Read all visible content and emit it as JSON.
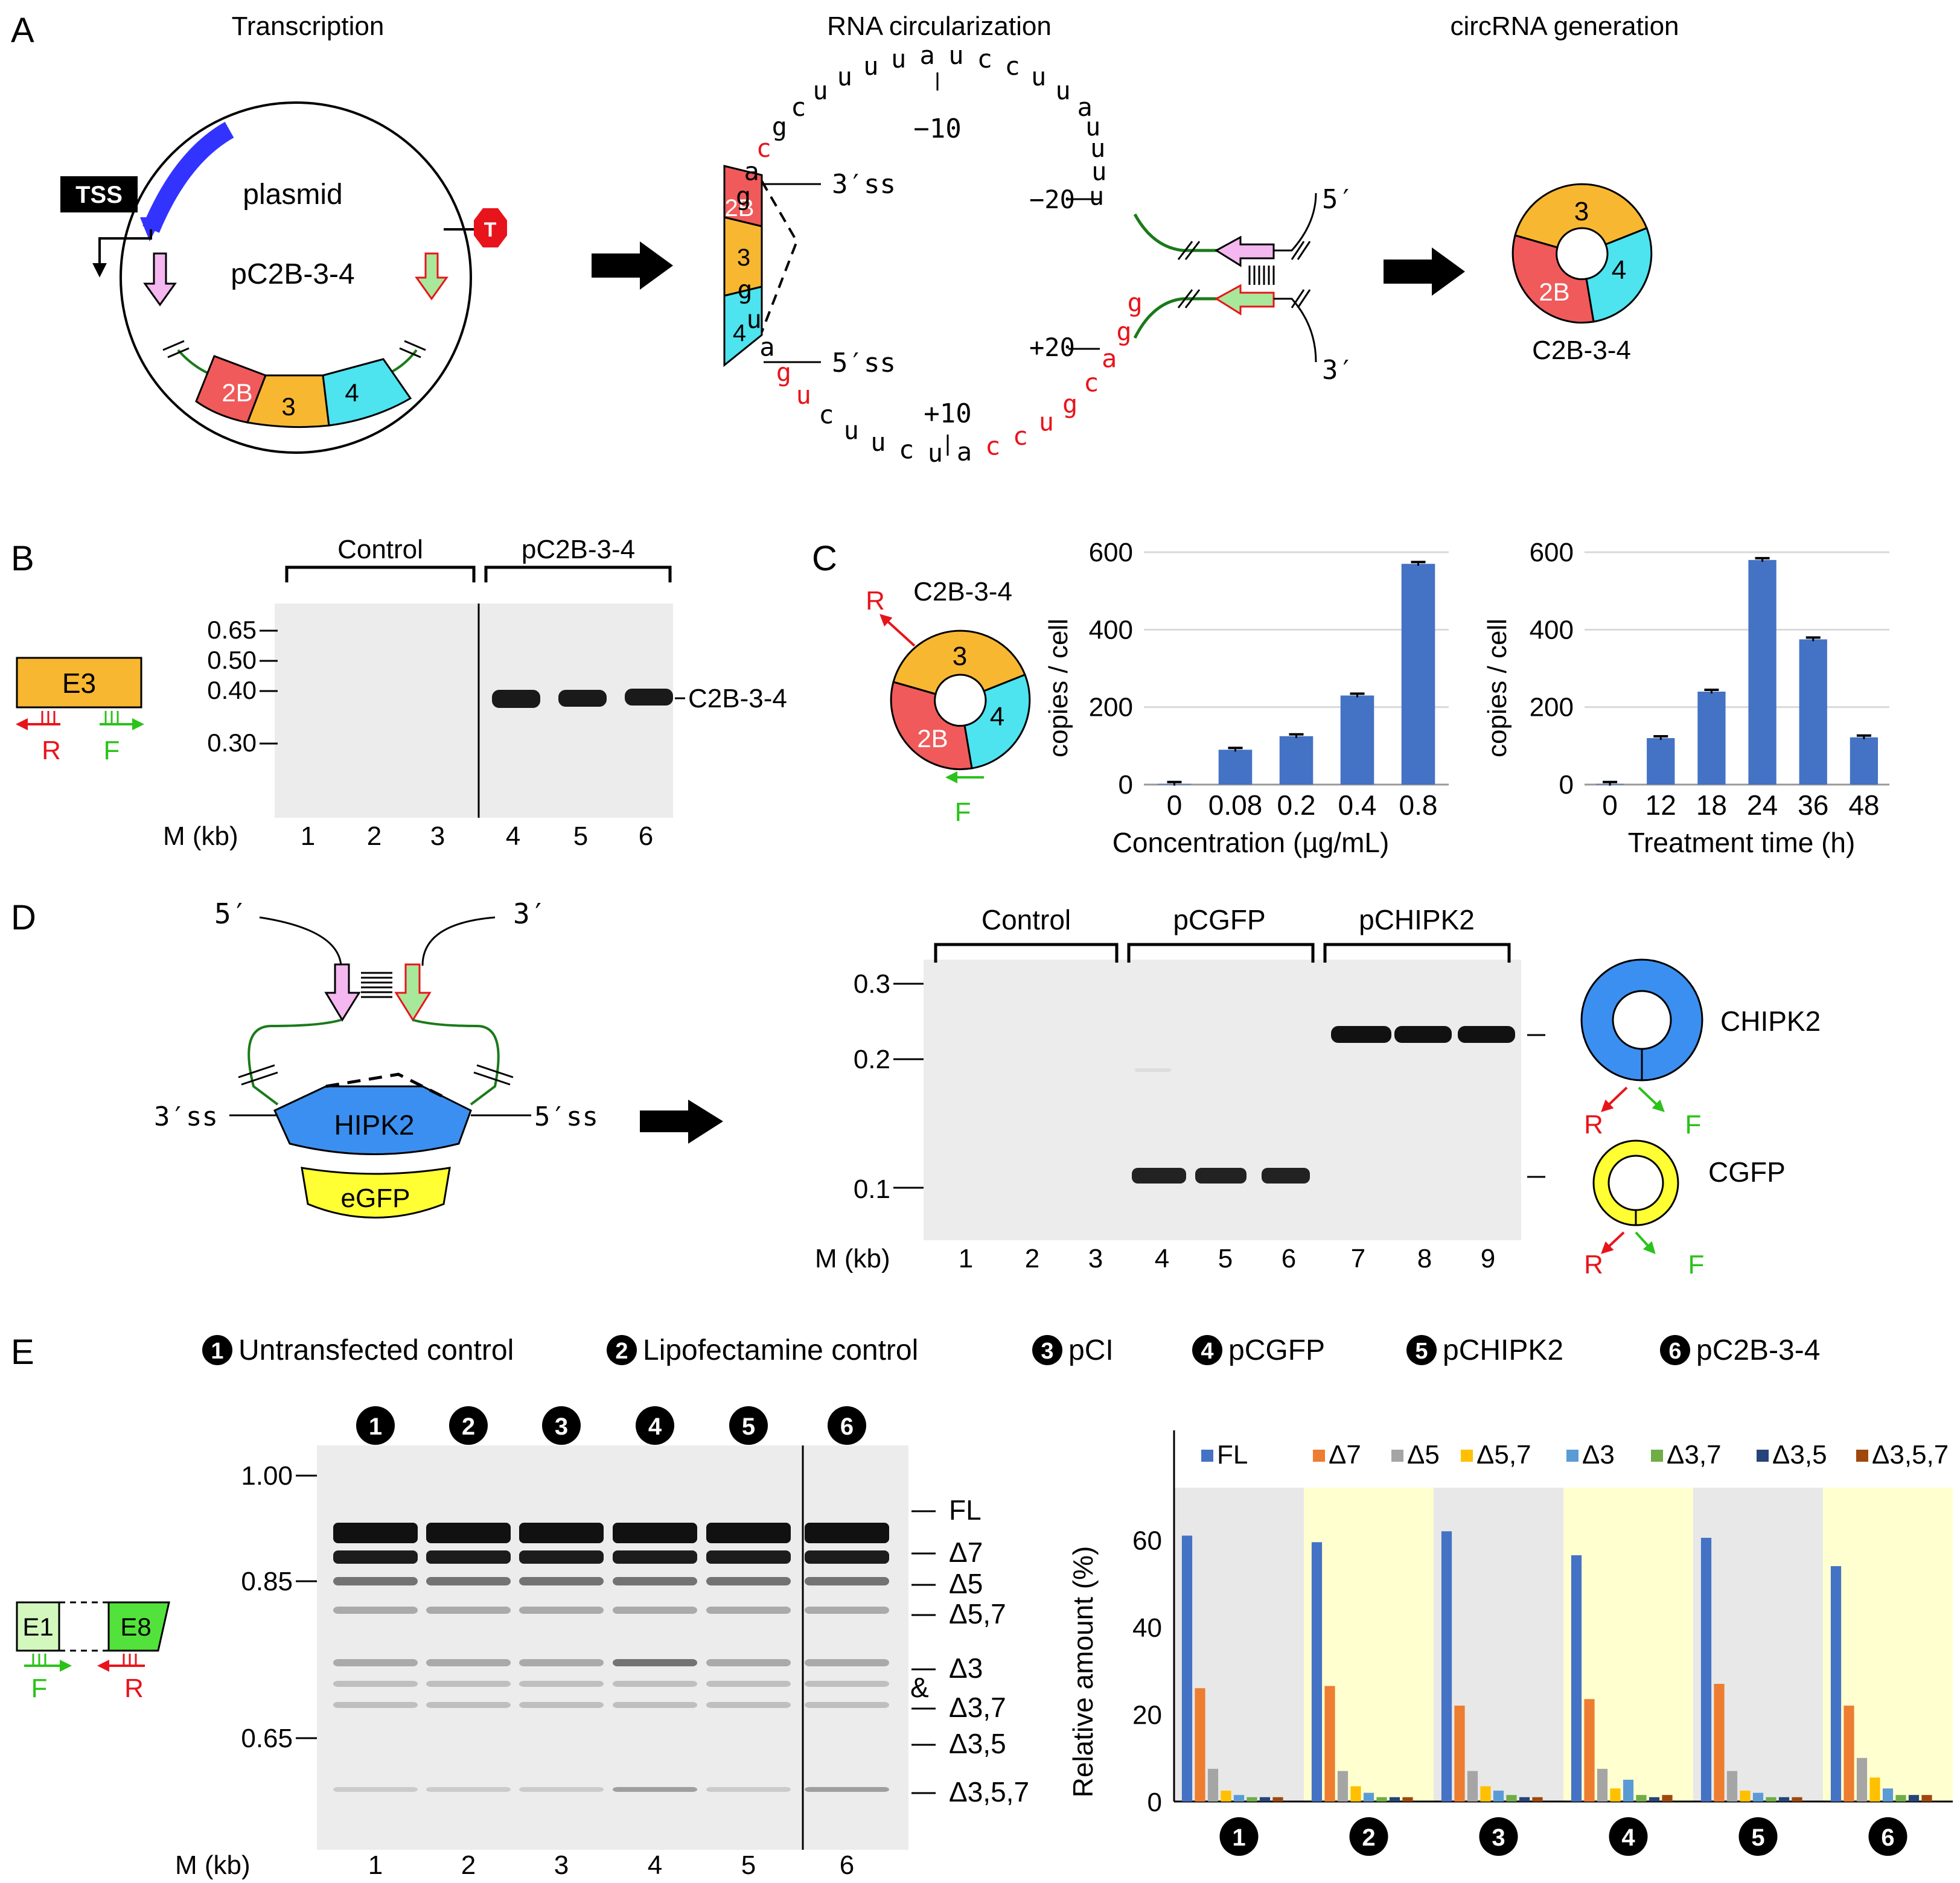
{
  "panel_letters": {
    "a": "A",
    "b": "B",
    "c": "C",
    "d": "D",
    "e": "E"
  },
  "panelA": {
    "title_left": "Transcription",
    "title_mid": "RNA circularization",
    "title_right": "circRNA generation",
    "tss": "TSS",
    "terminator": "T",
    "plasmid": "plasmid",
    "plasmid_name": "pC2B-3-4",
    "exons": [
      "2B",
      "3",
      "4"
    ],
    "ss3": "3′ss",
    "ss5": "5′ss",
    "tick_m10": "−10",
    "tick_m20": "−20",
    "tick_p10": "+10",
    "tick_p20": "+20",
    "end5": "5′",
    "end3": "3′",
    "circ_label": "C2B-3-4",
    "top_seq": [
      "g",
      "a",
      "c",
      "g",
      "c",
      "u",
      "u",
      "u",
      "u",
      "a",
      "u",
      "c",
      "c",
      "u",
      "u",
      "a",
      "u",
      "u",
      "u",
      "u"
    ],
    "bottom_seq": [
      "g",
      "u",
      "a",
      "g",
      "u",
      "c",
      "u",
      "u",
      "c",
      "u",
      "a",
      "c",
      "c",
      "u",
      "g",
      "c",
      "a",
      "g",
      "g"
    ]
  },
  "panelB": {
    "exon": "E3",
    "primer_r": "R",
    "primer_f": "F",
    "group_control": "Control",
    "group_treat": "pC2B-3-4",
    "markers": [
      "0.65",
      "0.50",
      "0.40",
      "0.30"
    ],
    "band_label": "C2B-3-4",
    "m_label": "M (kb)",
    "lanes": [
      "1",
      "2",
      "3",
      "4",
      "5",
      "6"
    ]
  },
  "panelC": {
    "circ_label": "C2B-3-4",
    "exons": [
      "3",
      "2B",
      "4"
    ],
    "primer_r": "R",
    "primer_f": "F",
    "chart_data": [
      {
        "type": "bar",
        "title": "",
        "xlabel": "Concentration (µg/mL)",
        "ylabel": "copies / cell",
        "categories": [
          "0",
          "0.08",
          "0.2",
          "0.4",
          "0.8"
        ],
        "values": [
          2,
          90,
          125,
          230,
          570
        ],
        "ylim": [
          0,
          600
        ],
        "yticks": [
          "0",
          "200",
          "400",
          "600"
        ]
      },
      {
        "type": "bar",
        "title": "",
        "xlabel": "Treatment time (h)",
        "ylabel": "copies / cell",
        "categories": [
          "0",
          "12",
          "18",
          "24",
          "36",
          "48"
        ],
        "values": [
          2,
          120,
          240,
          580,
          375,
          122
        ],
        "ylim": [
          0,
          600
        ],
        "yticks": [
          "0",
          "200",
          "400",
          "600"
        ]
      }
    ]
  },
  "panelD": {
    "end5": "5′",
    "end3": "3′",
    "ss3": "3′ss",
    "ss5": "5′ss",
    "gene1": "HIPK2",
    "gene2": "eGFP",
    "group_control": "Control",
    "group_gfp": "pCGFP",
    "group_hipk": "pCHIPK2",
    "markers": [
      "0.3",
      "0.2",
      "0.1"
    ],
    "m_label": "M (kb)",
    "lanes": [
      "1",
      "2",
      "3",
      "4",
      "5",
      "6",
      "7",
      "8",
      "9"
    ],
    "circ1": "CHIPK2",
    "circ2": "CGFP",
    "primer_r": "R",
    "primer_f": "F"
  },
  "panelE": {
    "legend_items": [
      {
        "num": "1",
        "label": "Untransfected control"
      },
      {
        "num": "2",
        "label": "Lipofectamine control"
      },
      {
        "num": "3",
        "label": "pCI"
      },
      {
        "num": "4",
        "label": "pCGFP"
      },
      {
        "num": "5",
        "label": "pCHIPK2"
      },
      {
        "num": "6",
        "label": "pC2B-3-4"
      }
    ],
    "exon1": "E1",
    "exon8": "E8",
    "primer_f": "F",
    "primer_r": "R",
    "lane_badges": [
      "1",
      "2",
      "3",
      "4",
      "5",
      "6"
    ],
    "markers": [
      "1.00",
      "0.85",
      "0.65"
    ],
    "m_label": "M (kb)",
    "lanes": [
      "1",
      "2",
      "3",
      "4",
      "5",
      "6"
    ],
    "isoforms": [
      "FL",
      "Δ7",
      "Δ5",
      "Δ5,7",
      "Δ3",
      "&",
      "Δ3,7",
      "Δ3,5",
      "Δ3,5,7"
    ],
    "chart_data": {
      "type": "bar",
      "ylabel": "Relative amount (%)",
      "ylim": [
        0,
        72
      ],
      "yticks": [
        "0",
        "20",
        "40",
        "60"
      ],
      "categories": [
        "1",
        "2",
        "3",
        "4",
        "5",
        "6"
      ],
      "series": [
        {
          "name": "FL",
          "color": "#4472c4",
          "values": [
            61,
            59.5,
            62,
            56.5,
            60.5,
            54
          ]
        },
        {
          "name": "Δ7",
          "color": "#ed7d31",
          "values": [
            26,
            26.5,
            22,
            23.5,
            27,
            22
          ]
        },
        {
          "name": "Δ5",
          "color": "#a5a5a5",
          "values": [
            7.5,
            7,
            7,
            7.5,
            7,
            10
          ]
        },
        {
          "name": "Δ5,7",
          "color": "#ffc000",
          "values": [
            2.5,
            3.5,
            3.5,
            3,
            2.5,
            5.5
          ]
        },
        {
          "name": "Δ3",
          "color": "#5b9bd5",
          "values": [
            1.5,
            2,
            2.5,
            5,
            2,
            3
          ]
        },
        {
          "name": "Δ3,7",
          "color": "#70ad47",
          "values": [
            1,
            1,
            1.5,
            1.5,
            1,
            1.5
          ]
        },
        {
          "name": "Δ3,5",
          "color": "#264478",
          "values": [
            1,
            1,
            1,
            1,
            1,
            1.5
          ]
        },
        {
          "name": "Δ3,5,7",
          "color": "#9e480e",
          "values": [
            1,
            1,
            1,
            1.5,
            1,
            1.5
          ]
        }
      ]
    }
  }
}
